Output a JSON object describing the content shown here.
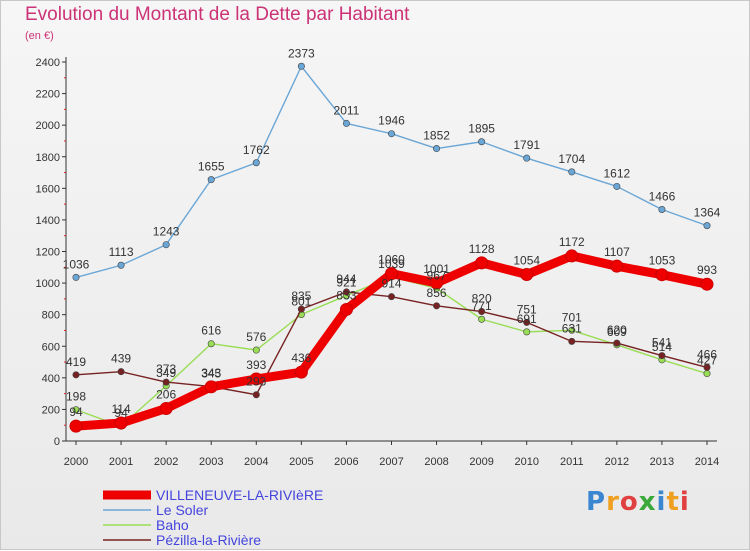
{
  "title": "Evolution du Montant de la Dette par Habitant",
  "subtitle": "(en €)",
  "brand": "Proxiti",
  "chart_data": {
    "type": "line",
    "title": "Evolution du Montant de la Dette par Habitant",
    "ylabel": "(en €)",
    "x": [
      2000,
      2001,
      2002,
      2003,
      2004,
      2005,
      2006,
      2007,
      2008,
      2009,
      2010,
      2011,
      2012,
      2013,
      2014
    ],
    "ylim": [
      0,
      2400
    ],
    "yticks": [
      0,
      200,
      400,
      600,
      800,
      1000,
      1200,
      1400,
      1600,
      1800,
      2000,
      2200,
      2400
    ],
    "grid": false,
    "legend": "bottom-left",
    "series": [
      {
        "name": "Le Soler",
        "color": "#6aa6d6",
        "values": [
          1036,
          1113,
          1243,
          1655,
          1762,
          2373,
          2011,
          1946,
          1852,
          1895,
          1791,
          1704,
          1612,
          1466,
          1364
        ]
      },
      {
        "name": "Baho",
        "color": "#99dd55",
        "values": [
          198,
          94,
          349,
          616,
          576,
          801,
          921,
          1039,
          967,
          771,
          691,
          701,
          609,
          514,
          427
        ]
      },
      {
        "name": "Pézilla-la-Rivière",
        "color": "#772222",
        "values": [
          419,
          439,
          373,
          345,
          293,
          835,
          944,
          914,
          856,
          820,
          751,
          631,
          620,
          541,
          466
        ]
      },
      {
        "name": "VILLENEUVE-LA-RIVIèRE",
        "color": "#ee0000",
        "values": [
          94,
          114,
          206,
          343,
          393,
          436,
          833,
          1060,
          1001,
          1128,
          1054,
          1172,
          1107,
          1053,
          993
        ]
      }
    ]
  }
}
